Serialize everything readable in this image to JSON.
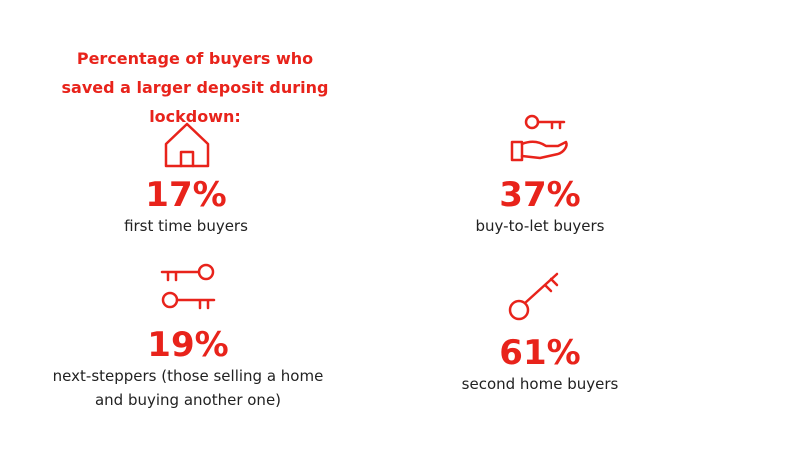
{
  "header": {
    "title": "Percentage of buyers who saved a larger deposit during lockdown:"
  },
  "stats": [
    {
      "value": "17%",
      "label": "first time buyers"
    },
    {
      "value": "37%",
      "label": "buy-to-let buyers"
    },
    {
      "value": "19%",
      "label": "next-steppers (those selling a home and buying another one)"
    },
    {
      "value": "61%",
      "label": "second home buyers"
    }
  ]
}
